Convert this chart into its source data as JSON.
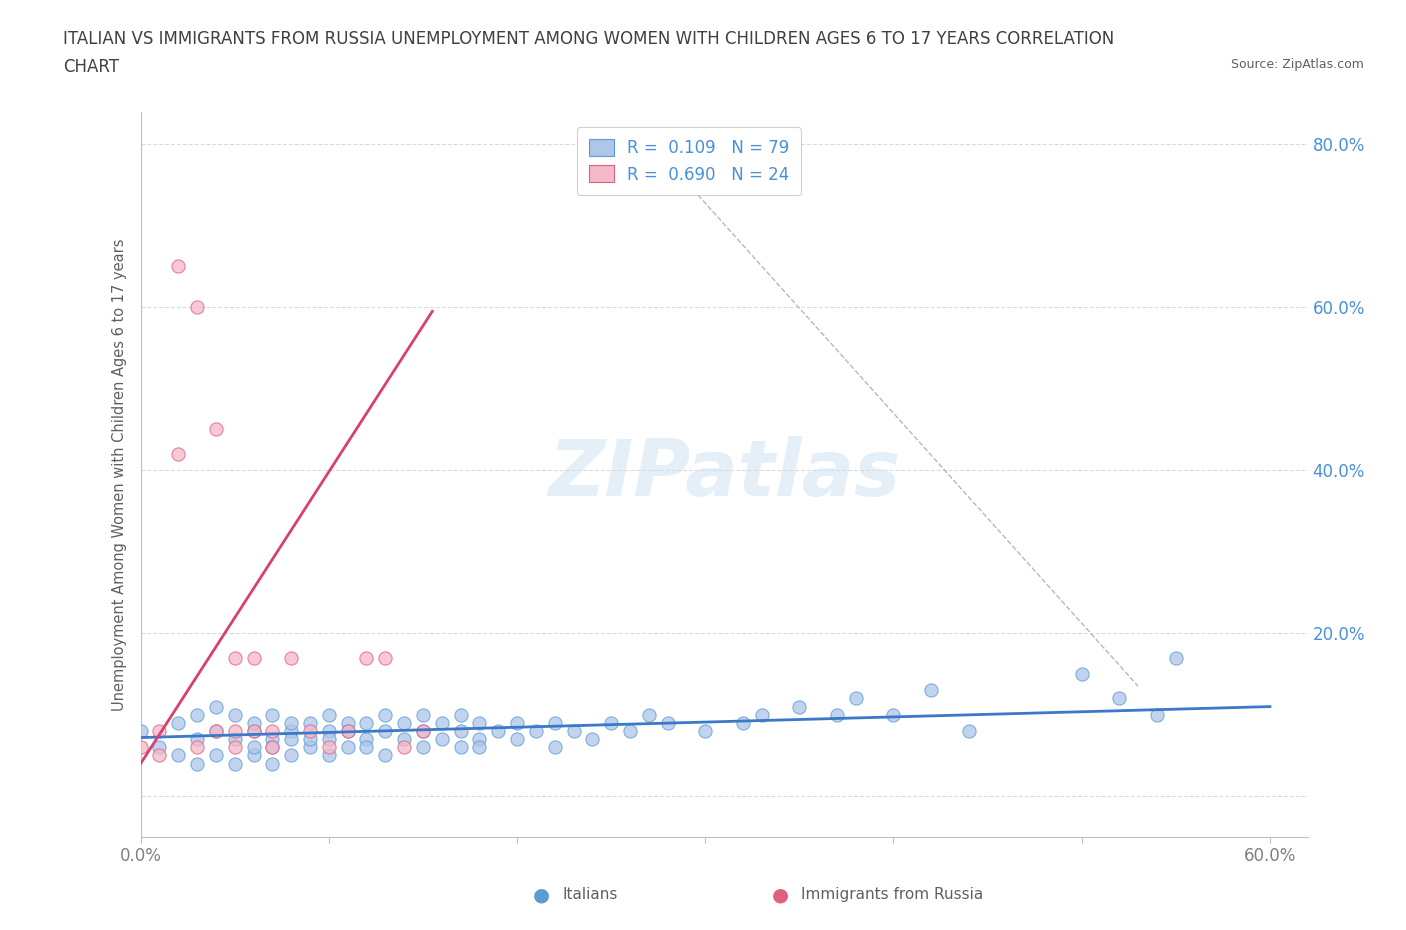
{
  "title_line1": "ITALIAN VS IMMIGRANTS FROM RUSSIA UNEMPLOYMENT AMONG WOMEN WITH CHILDREN AGES 6 TO 17 YEARS CORRELATION",
  "title_line2": "CHART",
  "source": "Source: ZipAtlas.com",
  "ylabel": "Unemployment Among Women with Children Ages 6 to 17 years",
  "xlim": [
    0.0,
    0.62
  ],
  "ylim": [
    -0.05,
    0.84
  ],
  "xticks": [
    0.0,
    0.1,
    0.2,
    0.3,
    0.4,
    0.5,
    0.6
  ],
  "xticklabels": [
    "0.0%",
    "",
    "",
    "",
    "",
    "",
    "60.0%"
  ],
  "yticks": [
    0.0,
    0.2,
    0.4,
    0.6,
    0.8
  ],
  "yticklabels_right": [
    "",
    "20.0%",
    "40.0%",
    "60.0%",
    "80.0%"
  ],
  "italian_color": "#aec6e8",
  "russian_color": "#f5b8c8",
  "italian_edge_color": "#5b9bd5",
  "russian_edge_color": "#e06080",
  "italian_trend_color": "#3a78c9",
  "russian_trend_color": "#d94070",
  "R_italian": 0.109,
  "N_italian": 79,
  "R_russian": 0.69,
  "N_russian": 24,
  "legend_label_italian": "Italians",
  "legend_label_russian": "Immigrants from Russia",
  "watermark": "ZIPatlas",
  "background_color": "#ffffff",
  "grid_color": "#d8d8d8",
  "title_color": "#404040",
  "axis_label_color": "#606060",
  "tick_color_x": "#808080",
  "tick_color_y": "#4a90d9",
  "italian_x": [
    0.0,
    0.01,
    0.02,
    0.02,
    0.03,
    0.03,
    0.03,
    0.04,
    0.04,
    0.04,
    0.05,
    0.05,
    0.05,
    0.06,
    0.06,
    0.06,
    0.06,
    0.07,
    0.07,
    0.07,
    0.07,
    0.08,
    0.08,
    0.08,
    0.08,
    0.09,
    0.09,
    0.09,
    0.1,
    0.1,
    0.1,
    0.1,
    0.11,
    0.11,
    0.11,
    0.12,
    0.12,
    0.12,
    0.13,
    0.13,
    0.13,
    0.14,
    0.14,
    0.15,
    0.15,
    0.15,
    0.16,
    0.16,
    0.17,
    0.17,
    0.17,
    0.18,
    0.18,
    0.18,
    0.19,
    0.2,
    0.2,
    0.21,
    0.22,
    0.22,
    0.23,
    0.24,
    0.25,
    0.26,
    0.27,
    0.28,
    0.3,
    0.32,
    0.33,
    0.35,
    0.37,
    0.38,
    0.4,
    0.42,
    0.44,
    0.5,
    0.52,
    0.54,
    0.55
  ],
  "italian_y": [
    0.08,
    0.06,
    0.05,
    0.09,
    0.04,
    0.07,
    0.1,
    0.05,
    0.08,
    0.11,
    0.04,
    0.07,
    0.1,
    0.05,
    0.08,
    0.06,
    0.09,
    0.04,
    0.07,
    0.1,
    0.06,
    0.05,
    0.08,
    0.07,
    0.09,
    0.06,
    0.09,
    0.07,
    0.05,
    0.08,
    0.1,
    0.07,
    0.06,
    0.09,
    0.08,
    0.07,
    0.09,
    0.06,
    0.05,
    0.08,
    0.1,
    0.07,
    0.09,
    0.06,
    0.08,
    0.1,
    0.07,
    0.09,
    0.06,
    0.08,
    0.1,
    0.07,
    0.09,
    0.06,
    0.08,
    0.07,
    0.09,
    0.08,
    0.06,
    0.09,
    0.08,
    0.07,
    0.09,
    0.08,
    0.1,
    0.09,
    0.08,
    0.09,
    0.1,
    0.11,
    0.1,
    0.12,
    0.1,
    0.13,
    0.08,
    0.15,
    0.12,
    0.1,
    0.17
  ],
  "russian_x": [
    0.0,
    0.01,
    0.01,
    0.02,
    0.02,
    0.03,
    0.03,
    0.04,
    0.04,
    0.05,
    0.05,
    0.05,
    0.06,
    0.06,
    0.07,
    0.07,
    0.08,
    0.09,
    0.1,
    0.11,
    0.12,
    0.13,
    0.14,
    0.15
  ],
  "russian_y": [
    0.06,
    0.05,
    0.08,
    0.42,
    0.65,
    0.06,
    0.6,
    0.08,
    0.45,
    0.06,
    0.08,
    0.17,
    0.08,
    0.17,
    0.06,
    0.08,
    0.17,
    0.08,
    0.06,
    0.08,
    0.17,
    0.17,
    0.06,
    0.08
  ],
  "italian_trend_x": [
    0.0,
    0.6
  ],
  "italian_trend_y": [
    0.072,
    0.11
  ],
  "russian_trend_x": [
    0.0,
    0.155
  ],
  "russian_trend_y": [
    0.04,
    0.595
  ],
  "dashed_line_x1": 0.27,
  "dashed_line_y1": 0.805,
  "dashed_line_x2": 0.53,
  "dashed_line_y2": 0.135
}
